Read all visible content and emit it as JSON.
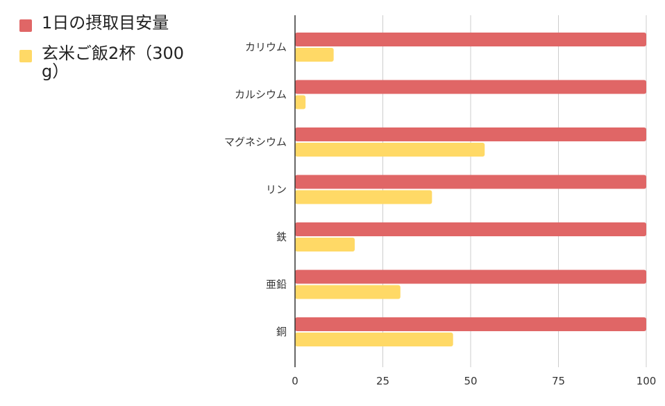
{
  "chart_data": {
    "type": "bar",
    "orientation": "horizontal",
    "categories": [
      "カリウム",
      "カルシウム",
      "マグネシウム",
      "リン",
      "鉄",
      "亜鉛",
      "銅"
    ],
    "series": [
      {
        "name": "1日の摂取目安量",
        "color": "#e06666",
        "values": [
          100,
          100,
          100,
          100,
          100,
          100,
          100
        ]
      },
      {
        "name": "玄米ご飯2杯（300g）",
        "color": "#ffd966",
        "values": [
          11,
          3,
          54,
          39,
          17,
          30,
          45
        ]
      }
    ],
    "xlim": [
      0,
      100
    ],
    "xticks": [
      0,
      25,
      50,
      75,
      100
    ],
    "xtick_labels": [
      "0",
      "25",
      "50",
      "75",
      "100"
    ],
    "grid": true,
    "legend_position": "top-left",
    "title": "",
    "xlabel": "",
    "ylabel": ""
  }
}
